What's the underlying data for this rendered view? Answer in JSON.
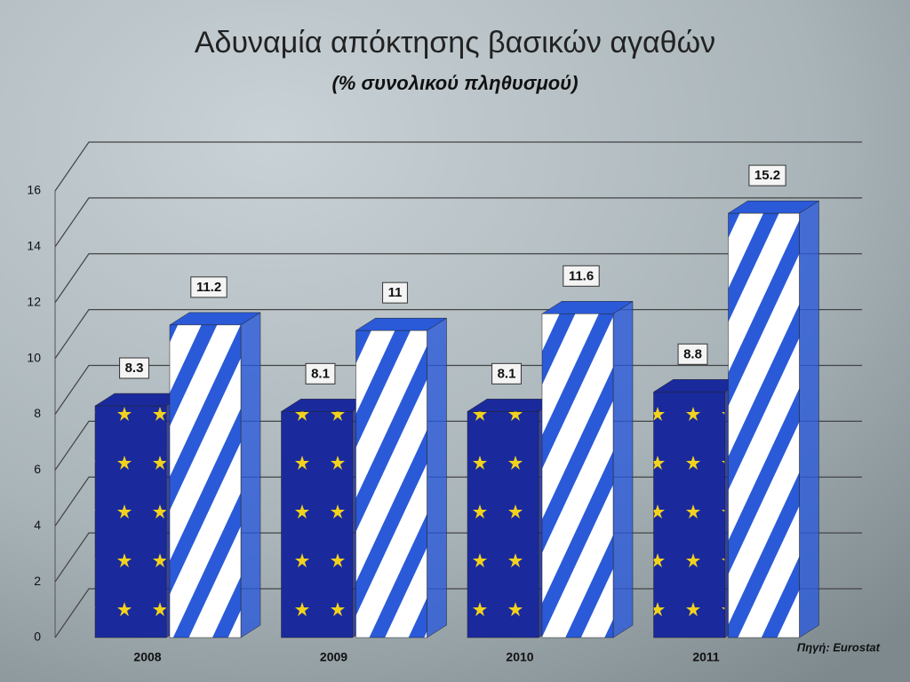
{
  "chart_data": {
    "type": "bar3d",
    "title": "Αδυναμία απόκτησης βασικών αγαθών",
    "subtitle": "(% συνολικού πληθυσμού)",
    "source": "Πηγή: Eurostat",
    "categories": [
      "2008",
      "2009",
      "2010",
      "2011"
    ],
    "series": [
      {
        "color": "#1a2a9c",
        "values": [
          8.3,
          8.1,
          8.1,
          8.8
        ]
      },
      {
        "color": "#2a5ad8",
        "values": [
          11.2,
          11,
          11.6,
          15.2
        ]
      }
    ],
    "ylim": [
      0,
      16
    ],
    "yticks": [
      0,
      2,
      4,
      6,
      8,
      10,
      12,
      14,
      16
    ],
    "grid": true
  }
}
